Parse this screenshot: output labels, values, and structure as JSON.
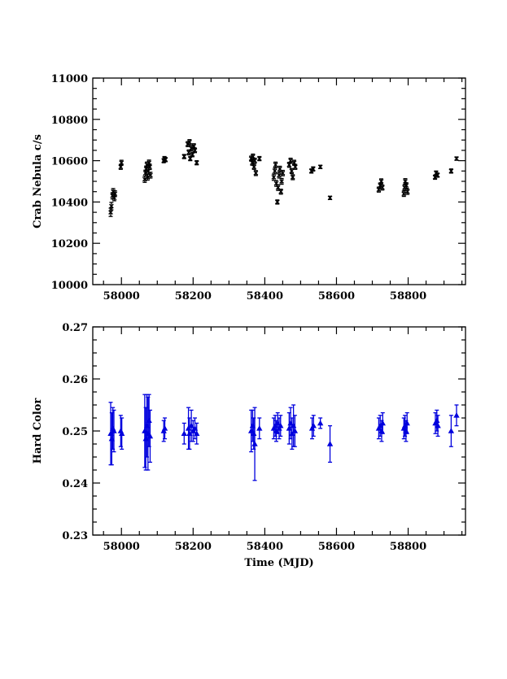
{
  "chart_data": [
    {
      "type": "scatter",
      "title": "",
      "xlabel": "",
      "ylabel": "Crab Nebula c/s",
      "xlim": [
        57920,
        58960
      ],
      "ylim": [
        10000,
        11000
      ],
      "xticks": [
        58000,
        58200,
        58400,
        58600,
        58800
      ],
      "yticks": [
        10000,
        10200,
        10400,
        10600,
        10800,
        11000
      ],
      "grid": false,
      "color": "#000000",
      "marker": "x-with-errorbars",
      "series": [
        {
          "points": [
            [
              57970,
              10350,
              20
            ],
            [
              57972,
              10380,
              18
            ],
            [
              57975,
              10430,
              15
            ],
            [
              57977,
              10450,
              15
            ],
            [
              57980,
              10420,
              14
            ],
            [
              57982,
              10440,
              14
            ],
            [
              57998,
              10570,
              12
            ],
            [
              58000,
              10590,
              12
            ],
            [
              58065,
              10510,
              15
            ],
            [
              58067,
              10540,
              14
            ],
            [
              58069,
              10560,
              14
            ],
            [
              58071,
              10580,
              13
            ],
            [
              58073,
              10520,
              14
            ],
            [
              58075,
              10550,
              14
            ],
            [
              58077,
              10590,
              13
            ],
            [
              58079,
              10570,
              13
            ],
            [
              58081,
              10530,
              14
            ],
            [
              58118,
              10600,
              10
            ],
            [
              58120,
              10610,
              10
            ],
            [
              58123,
              10605,
              10
            ],
            [
              58175,
              10620,
              10
            ],
            [
              58185,
              10680,
              12
            ],
            [
              58188,
              10640,
              12
            ],
            [
              58190,
              10690,
              12
            ],
            [
              58192,
              10610,
              10
            ],
            [
              58195,
              10660,
              12
            ],
            [
              58198,
              10630,
              11
            ],
            [
              58202,
              10670,
              12
            ],
            [
              58205,
              10650,
              11
            ],
            [
              58210,
              10590,
              10
            ],
            [
              58362,
              10610,
              12
            ],
            [
              58365,
              10590,
              12
            ],
            [
              58367,
              10620,
              12
            ],
            [
              58370,
              10570,
              12
            ],
            [
              58372,
              10600,
              12
            ],
            [
              58375,
              10540,
              12
            ],
            [
              58385,
              10610,
              10
            ],
            [
              58425,
              10520,
              15
            ],
            [
              58428,
              10550,
              14
            ],
            [
              58430,
              10580,
              13
            ],
            [
              58432,
              10490,
              14
            ],
            [
              58435,
              10400,
              10
            ],
            [
              58437,
              10470,
              14
            ],
            [
              58440,
              10530,
              14
            ],
            [
              58442,
              10560,
              13
            ],
            [
              58445,
              10450,
              12
            ],
            [
              58447,
              10500,
              14
            ],
            [
              58450,
              10540,
              13
            ],
            [
              58468,
              10580,
              12
            ],
            [
              58472,
              10600,
              12
            ],
            [
              58475,
              10550,
              12
            ],
            [
              58478,
              10520,
              12
            ],
            [
              58482,
              10590,
              12
            ],
            [
              58485,
              10570,
              12
            ],
            [
              58530,
              10550,
              10
            ],
            [
              58535,
              10560,
              10
            ],
            [
              58555,
              10570,
              8
            ],
            [
              58582,
              10420,
              8
            ],
            [
              58718,
              10460,
              12
            ],
            [
              58722,
              10480,
              12
            ],
            [
              58725,
              10500,
              12
            ],
            [
              58728,
              10470,
              12
            ],
            [
              58788,
              10440,
              13
            ],
            [
              58790,
              10470,
              13
            ],
            [
              58792,
              10500,
              13
            ],
            [
              58795,
              10480,
              13
            ],
            [
              58798,
              10450,
              13
            ],
            [
              58875,
              10520,
              10
            ],
            [
              58878,
              10540,
              10
            ],
            [
              58882,
              10530,
              10
            ],
            [
              58920,
              10550,
              10
            ],
            [
              58935,
              10610,
              8
            ]
          ]
        }
      ]
    },
    {
      "type": "scatter",
      "title": "",
      "xlabel": "Time (MJD)",
      "ylabel": "Hard Color",
      "xlim": [
        57920,
        58960
      ],
      "ylim": [
        0.23,
        0.27
      ],
      "xticks": [
        58000,
        58200,
        58400,
        58600,
        58800
      ],
      "yticks": [
        0.23,
        0.24,
        0.25,
        0.26,
        0.27
      ],
      "ytick_labels": [
        "0.23",
        "0.24",
        "0.25",
        "0.26",
        "0.27"
      ],
      "grid": false,
      "color": "#0000dd",
      "marker": "triangle-with-errorbars",
      "series": [
        {
          "points": [
            [
              57970,
              0.2495,
              0.006
            ],
            [
              57973,
              0.2485,
              0.005
            ],
            [
              57976,
              0.2505,
              0.004
            ],
            [
              57979,
              0.25,
              0.004
            ],
            [
              57998,
              0.25,
              0.003
            ],
            [
              58001,
              0.2495,
              0.003
            ],
            [
              58065,
              0.25,
              0.007
            ],
            [
              58068,
              0.2485,
              0.006
            ],
            [
              58071,
              0.251,
              0.006
            ],
            [
              58074,
              0.2495,
              0.007
            ],
            [
              58077,
              0.252,
              0.005
            ],
            [
              58080,
              0.249,
              0.005
            ],
            [
              58118,
              0.25,
              0.002
            ],
            [
              58121,
              0.2505,
              0.002
            ],
            [
              58175,
              0.2495,
              0.002
            ],
            [
              58187,
              0.2505,
              0.004
            ],
            [
              58190,
              0.2495,
              0.003
            ],
            [
              58195,
              0.251,
              0.003
            ],
            [
              58200,
              0.25,
              0.002
            ],
            [
              58205,
              0.2505,
              0.002
            ],
            [
              58210,
              0.2495,
              0.002
            ],
            [
              58362,
              0.25,
              0.004
            ],
            [
              58366,
              0.251,
              0.003
            ],
            [
              58369,
              0.2495,
              0.003
            ],
            [
              58372,
              0.2475,
              0.007
            ],
            [
              58385,
              0.2505,
              0.002
            ],
            [
              58425,
              0.2505,
              0.002
            ],
            [
              58429,
              0.251,
              0.002
            ],
            [
              58432,
              0.25,
              0.002
            ],
            [
              58436,
              0.2515,
              0.002
            ],
            [
              58440,
              0.2505,
              0.002
            ],
            [
              58444,
              0.251,
              0.002
            ],
            [
              58468,
              0.2505,
              0.003
            ],
            [
              58472,
              0.2515,
              0.003
            ],
            [
              58476,
              0.2495,
              0.003
            ],
            [
              58480,
              0.251,
              0.004
            ],
            [
              58484,
              0.25,
              0.003
            ],
            [
              58532,
              0.2505,
              0.002
            ],
            [
              58536,
              0.251,
              0.002
            ],
            [
              58555,
              0.2515,
              0.001
            ],
            [
              58582,
              0.2475,
              0.0035
            ],
            [
              58718,
              0.2505,
              0.002
            ],
            [
              58722,
              0.251,
              0.002
            ],
            [
              58726,
              0.25,
              0.002
            ],
            [
              58729,
              0.2515,
              0.002
            ],
            [
              58788,
              0.2505,
              0.002
            ],
            [
              58791,
              0.251,
              0.002
            ],
            [
              58794,
              0.25,
              0.002
            ],
            [
              58797,
              0.2515,
              0.002
            ],
            [
              58876,
              0.2515,
              0.002
            ],
            [
              58880,
              0.252,
              0.002
            ],
            [
              58883,
              0.251,
              0.002
            ],
            [
              58920,
              0.25,
              0.003
            ],
            [
              58935,
              0.253,
              0.002
            ]
          ]
        }
      ]
    }
  ]
}
